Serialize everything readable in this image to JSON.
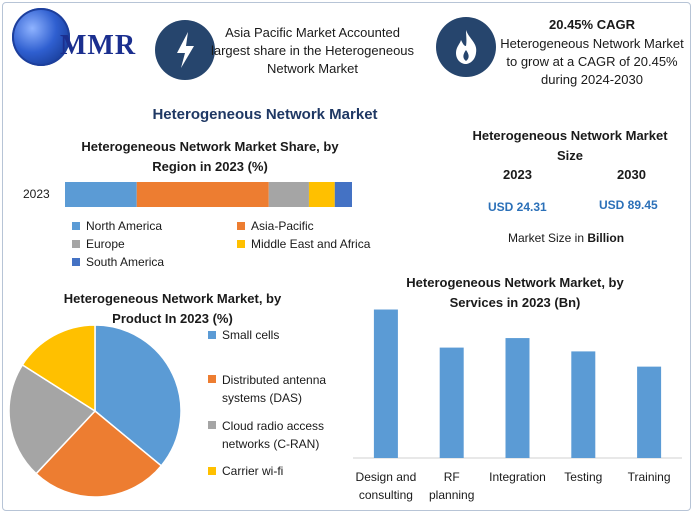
{
  "brand": {
    "logo_text": "MMR"
  },
  "banner": {
    "left_info": "Asia Pacific Market Accounted largest share in the Heterogeneous Network Market",
    "right_title": "20.45% CAGR",
    "right_info": "Heterogeneous Network Market to grow at a CAGR of 20.45% during 2024-2030"
  },
  "main_title": "Heterogeneous Network Market",
  "market_size": {
    "title": "Heterogeneous Network Market Size",
    "year_a": "2023",
    "year_b": "2030",
    "value_a": "USD 24.31",
    "value_b": "USD 89.45",
    "unit_prefix": "Market Size in",
    "unit_bold": "Billion"
  },
  "colors": {
    "blue": "#5b9bd5",
    "orange": "#ed7d31",
    "gray": "#a5a5a5",
    "yellow": "#ffc000",
    "darkblue": "#4472c4",
    "navy": "#26456d"
  },
  "icons": [
    "lightning-icon",
    "flame-icon",
    "globe-icon"
  ],
  "chart_data": [
    {
      "type": "bar",
      "orientation": "horizontal-stacked",
      "title": "Heterogeneous Network Market Share, by Region in 2023 (%)",
      "categories": [
        "2023"
      ],
      "series": [
        {
          "name": "North America",
          "values": [
            25
          ],
          "color": "#5b9bd5"
        },
        {
          "name": "Asia-Pacific",
          "values": [
            46
          ],
          "color": "#ed7d31"
        },
        {
          "name": "Europe",
          "values": [
            14
          ],
          "color": "#a5a5a5"
        },
        {
          "name": "Middle East and Africa",
          "values": [
            9
          ],
          "color": "#ffc000"
        },
        {
          "name": "South America",
          "values": [
            6
          ],
          "color": "#4472c4"
        }
      ]
    },
    {
      "type": "pie",
      "title": "Heterogeneous Network Market, by Product In 2023 (%)",
      "labels": [
        "Small cells",
        "Distributed antenna systems (DAS)",
        "Cloud radio access networks (C-RAN)",
        "Carrier wi-fi"
      ],
      "values": [
        36,
        26,
        22,
        16
      ],
      "colors": [
        "#5b9bd5",
        "#ed7d31",
        "#a5a5a5",
        "#ffc000"
      ]
    },
    {
      "type": "bar",
      "title": "Heterogeneous Network Market, by Services in 2023 (Bn)",
      "categories": [
        [
          "Design and",
          "consulting"
        ],
        [
          "RF",
          "planning"
        ],
        [
          "Integration"
        ],
        [
          "Testing"
        ],
        [
          "Training"
        ]
      ],
      "values": [
        7.8,
        5.8,
        6.3,
        5.6,
        4.8
      ],
      "ylim": [
        0,
        8.3
      ],
      "color": "#5b9bd5"
    }
  ]
}
